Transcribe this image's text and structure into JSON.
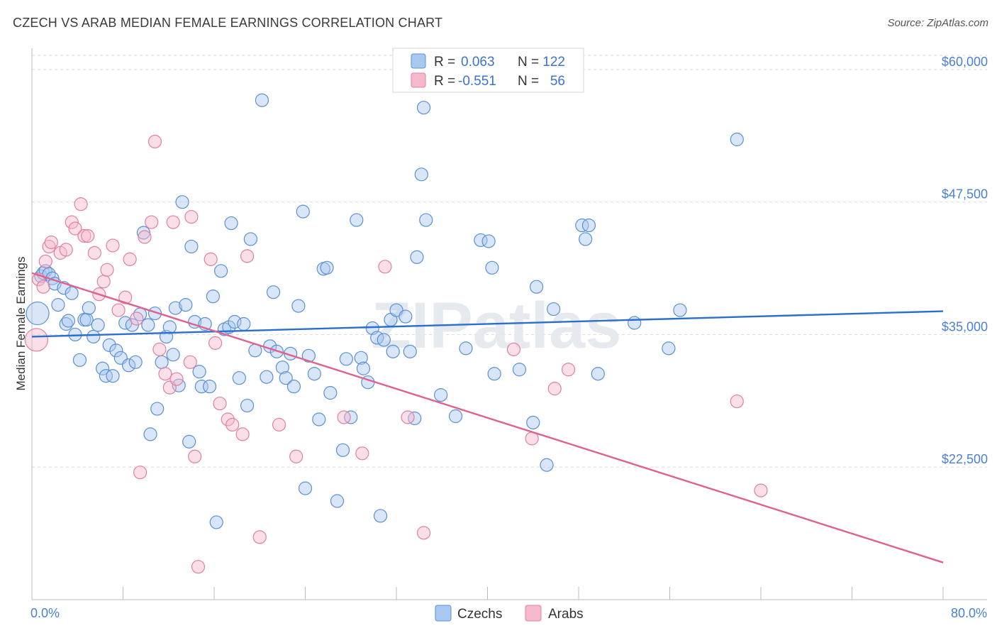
{
  "title": "CZECH VS ARAB MEDIAN FEMALE EARNINGS CORRELATION CHART",
  "source": "Source: ZipAtlas.com",
  "watermark": "ZIPatlas",
  "colors": {
    "czech_fill": "#a9c8f0",
    "czech_stroke": "#5b8fd6",
    "czech_line": "#2a6fd0",
    "arab_fill": "#f6b8cc",
    "arab_stroke": "#e07fa2",
    "arab_line": "#e0608e",
    "tick_text": "#4a7fd4",
    "grid": "#dddddd"
  },
  "legend": {
    "rows": [
      {
        "r_label": "R =",
        "r_value": "0.063",
        "n_label": "N =",
        "n_value": "122"
      },
      {
        "r_label": "R =",
        "r_value": "-0.551",
        "n_label": "N =",
        "n_value": "56"
      }
    ]
  },
  "chart_data": {
    "type": "scatter",
    "title": "CZECH VS ARAB MEDIAN FEMALE EARNINGS CORRELATION CHART",
    "xlabel": "",
    "ylabel": "Median Female Earnings",
    "xlim": [
      0,
      80
    ],
    "ylim": [
      10000,
      62000
    ],
    "x_tick_labels": [
      "0.0%",
      "80.0%"
    ],
    "y_ticks": [
      22500,
      35000,
      47500,
      60000
    ],
    "y_tick_labels": [
      "$22,500",
      "$35,000",
      "$47,500",
      "$60,000"
    ],
    "grid": true,
    "legend_position": "top-center and bottom",
    "series": [
      {
        "name": "Czechs",
        "trend": {
          "x": [
            0,
            80
          ],
          "y": [
            34800,
            37200
          ]
        },
        "points": [
          [
            0.5,
            37000
          ],
          [
            0.8,
            40500
          ],
          [
            1.0,
            40800
          ],
          [
            1.2,
            41000
          ],
          [
            1.5,
            40700
          ],
          [
            1.8,
            40300
          ],
          [
            2.0,
            39800
          ],
          [
            2.3,
            37800
          ],
          [
            2.8,
            39400
          ],
          [
            3.0,
            36000
          ],
          [
            3.2,
            36300
          ],
          [
            3.5,
            38900
          ],
          [
            3.8,
            35000
          ],
          [
            4.2,
            32600
          ],
          [
            4.6,
            36400
          ],
          [
            4.8,
            36400
          ],
          [
            5.0,
            37500
          ],
          [
            5.4,
            34800
          ],
          [
            5.8,
            35900
          ],
          [
            6.2,
            31800
          ],
          [
            6.5,
            31100
          ],
          [
            6.8,
            34000
          ],
          [
            7.1,
            31100
          ],
          [
            7.4,
            33500
          ],
          [
            7.8,
            32800
          ],
          [
            8.2,
            36100
          ],
          [
            8.5,
            32100
          ],
          [
            8.8,
            35900
          ],
          [
            9.1,
            32400
          ],
          [
            9.5,
            36900
          ],
          [
            9.8,
            44600
          ],
          [
            10.2,
            35900
          ],
          [
            10.4,
            25600
          ],
          [
            10.8,
            37000
          ],
          [
            11.0,
            28000
          ],
          [
            11.4,
            32400
          ],
          [
            11.8,
            34800
          ],
          [
            12.1,
            35700
          ],
          [
            12.4,
            33100
          ],
          [
            12.6,
            37500
          ],
          [
            12.9,
            30200
          ],
          [
            13.2,
            47500
          ],
          [
            13.5,
            37800
          ],
          [
            13.8,
            24900
          ],
          [
            14.0,
            43300
          ],
          [
            14.3,
            36200
          ],
          [
            14.7,
            31500
          ],
          [
            14.9,
            30100
          ],
          [
            15.2,
            36000
          ],
          [
            15.6,
            30100
          ],
          [
            15.9,
            38600
          ],
          [
            16.2,
            17300
          ],
          [
            16.6,
            41000
          ],
          [
            16.9,
            35500
          ],
          [
            17.3,
            35700
          ],
          [
            17.5,
            45500
          ],
          [
            17.8,
            36200
          ],
          [
            18.2,
            30900
          ],
          [
            18.6,
            36000
          ],
          [
            18.9,
            28300
          ],
          [
            19.2,
            44000
          ],
          [
            19.6,
            33500
          ],
          [
            20.2,
            57100
          ],
          [
            20.6,
            31000
          ],
          [
            20.9,
            33900
          ],
          [
            21.2,
            39000
          ],
          [
            21.5,
            33400
          ],
          [
            22.0,
            31900
          ],
          [
            22.3,
            30900
          ],
          [
            22.7,
            33200
          ],
          [
            23.0,
            30100
          ],
          [
            23.4,
            37700
          ],
          [
            23.8,
            46600
          ],
          [
            24.0,
            20500
          ],
          [
            24.3,
            33000
          ],
          [
            24.8,
            31300
          ],
          [
            25.2,
            27000
          ],
          [
            25.6,
            41200
          ],
          [
            25.9,
            41300
          ],
          [
            26.2,
            29500
          ],
          [
            26.8,
            19300
          ],
          [
            27.3,
            24100
          ],
          [
            27.6,
            32700
          ],
          [
            28.0,
            27200
          ],
          [
            28.5,
            45800
          ],
          [
            28.9,
            32800
          ],
          [
            29.1,
            31800
          ],
          [
            29.5,
            30500
          ],
          [
            29.9,
            35600
          ],
          [
            30.3,
            34700
          ],
          [
            30.6,
            17900
          ],
          [
            30.9,
            34500
          ],
          [
            31.5,
            36400
          ],
          [
            31.7,
            33400
          ],
          [
            32.0,
            37300
          ],
          [
            32.8,
            36700
          ],
          [
            33.2,
            33400
          ],
          [
            33.6,
            27100
          ],
          [
            33.8,
            42300
          ],
          [
            34.2,
            50100
          ],
          [
            34.4,
            56400
          ],
          [
            34.6,
            45800
          ],
          [
            35.9,
            29300
          ],
          [
            37.2,
            27300
          ],
          [
            38.1,
            33700
          ],
          [
            39.4,
            43900
          ],
          [
            40.1,
            43800
          ],
          [
            40.4,
            41300
          ],
          [
            40.6,
            31300
          ],
          [
            42.8,
            31700
          ],
          [
            44.0,
            26700
          ],
          [
            44.3,
            39500
          ],
          [
            45.2,
            22700
          ],
          [
            45.8,
            37400
          ],
          [
            48.3,
            45300
          ],
          [
            48.6,
            44000
          ],
          [
            48.9,
            45300
          ],
          [
            49.7,
            31300
          ],
          [
            52.9,
            36100
          ],
          [
            55.9,
            33700
          ],
          [
            56.9,
            37300
          ],
          [
            61.9,
            53400
          ]
        ]
      },
      {
        "name": "Arabs",
        "trend": {
          "x": [
            0,
            80
          ],
          "y": [
            40800,
            13500
          ]
        },
        "points": [
          [
            0.4,
            34500
          ],
          [
            0.6,
            40200
          ],
          [
            1.0,
            39500
          ],
          [
            1.2,
            41900
          ],
          [
            1.5,
            43300
          ],
          [
            1.7,
            43700
          ],
          [
            2.5,
            42700
          ],
          [
            3.0,
            43000
          ],
          [
            3.5,
            45600
          ],
          [
            3.8,
            45000
          ],
          [
            4.3,
            47300
          ],
          [
            4.6,
            44300
          ],
          [
            4.9,
            44300
          ],
          [
            5.5,
            42700
          ],
          [
            5.9,
            38800
          ],
          [
            6.3,
            40000
          ],
          [
            6.6,
            41100
          ],
          [
            7.1,
            43400
          ],
          [
            7.6,
            37300
          ],
          [
            8.2,
            38500
          ],
          [
            8.6,
            42100
          ],
          [
            9.2,
            36500
          ],
          [
            9.5,
            22000
          ],
          [
            9.9,
            44200
          ],
          [
            10.5,
            45600
          ],
          [
            10.8,
            53200
          ],
          [
            11.2,
            33600
          ],
          [
            11.7,
            31300
          ],
          [
            12.1,
            30000
          ],
          [
            12.4,
            45600
          ],
          [
            12.7,
            30800
          ],
          [
            13.9,
            32400
          ],
          [
            14.0,
            46100
          ],
          [
            14.3,
            23500
          ],
          [
            14.6,
            13100
          ],
          [
            15.7,
            42100
          ],
          [
            16.1,
            34200
          ],
          [
            16.5,
            28500
          ],
          [
            17.2,
            27000
          ],
          [
            17.6,
            26500
          ],
          [
            18.5,
            25600
          ],
          [
            18.9,
            42400
          ],
          [
            20.0,
            15900
          ],
          [
            21.7,
            26500
          ],
          [
            23.2,
            23500
          ],
          [
            27.4,
            27200
          ],
          [
            29.0,
            23800
          ],
          [
            31.0,
            41400
          ],
          [
            33.0,
            27200
          ],
          [
            34.4,
            16300
          ],
          [
            42.3,
            33600
          ],
          [
            43.9,
            25200
          ],
          [
            45.9,
            29900
          ],
          [
            47.1,
            31700
          ],
          [
            61.9,
            28700
          ],
          [
            64.0,
            20300
          ]
        ]
      }
    ]
  }
}
